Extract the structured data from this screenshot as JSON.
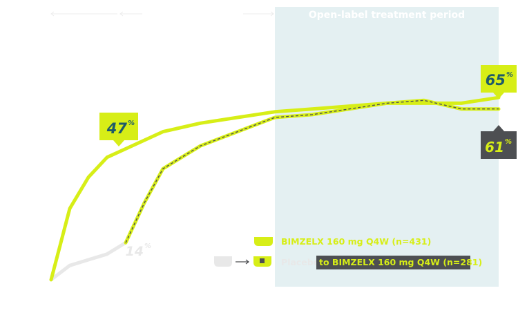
{
  "colors": {
    "bimzelx": "#d7ee17",
    "placebo": "#e8e8e8",
    "shade": "#e4f0f2",
    "dark": "#4d4f52",
    "accent_text": "#1e5a6a",
    "white": "#ffffff"
  },
  "period": {
    "label": "Open-label treatment period"
  },
  "chart_data": {
    "type": "line",
    "xlabel": "",
    "ylabel": "",
    "xlim": [
      0,
      48
    ],
    "ylim": [
      0,
      75
    ],
    "open_label_start": 24,
    "series": [
      {
        "name": "BIMZELX 160 mg Q4W (n=431)",
        "style": "solid",
        "x": [
          0,
          2,
          4,
          6,
          8,
          12,
          16,
          20,
          24,
          28,
          32,
          36,
          40,
          44,
          48
        ],
        "y": [
          1,
          26,
          37,
          44,
          47,
          53,
          56,
          58,
          60,
          61,
          62,
          63,
          63,
          63,
          65
        ]
      },
      {
        "name": "Placebo",
        "style": "solid",
        "x": [
          0,
          2,
          4,
          6,
          8
        ],
        "y": [
          1,
          6,
          8,
          10,
          14
        ]
      },
      {
        "name": "Placebo to BIMZELX 160 mg Q4W (n=281)",
        "style": "dashed",
        "x": [
          8,
          10,
          12,
          16,
          20,
          24,
          28,
          32,
          36,
          40,
          44,
          48
        ],
        "y": [
          14,
          28,
          40,
          48,
          53,
          58,
          59,
          61,
          63,
          64,
          61,
          61
        ]
      }
    ],
    "annotations": [
      {
        "text": "47",
        "unit": "%",
        "x": 8,
        "y": 47,
        "series": 0
      },
      {
        "text": "14",
        "unit": "%",
        "x": 8,
        "y": 14,
        "series": 1
      },
      {
        "text": "65",
        "unit": "%",
        "x": 48,
        "y": 65,
        "series": 0
      },
      {
        "text": "61",
        "unit": "%",
        "x": 48,
        "y": 61,
        "series": 2
      }
    ]
  },
  "legend": {
    "bimzelx": "BIMZELX 160 mg Q4W (n=431)",
    "placebo": "Placebo",
    "switch": "to BIMZELX 160 mg Q4W (n=281)"
  }
}
